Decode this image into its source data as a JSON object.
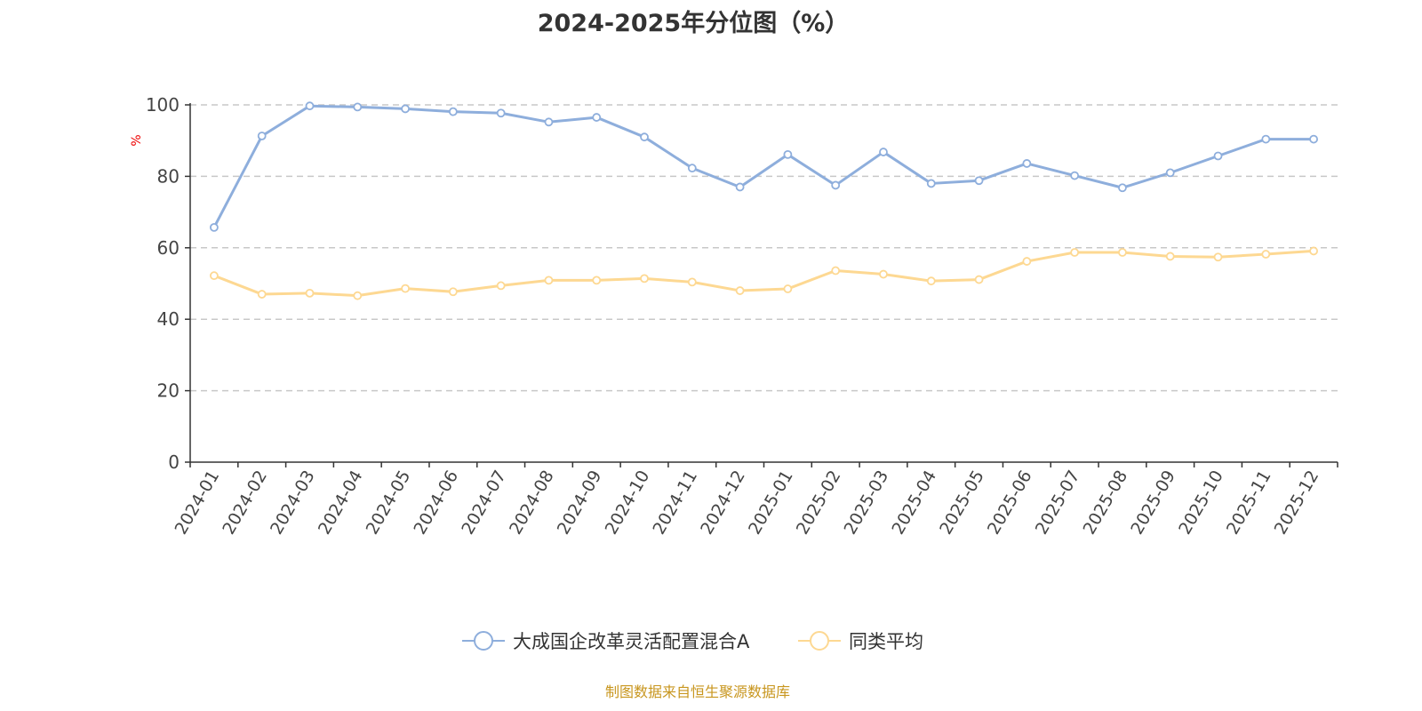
{
  "chart_data": {
    "type": "line",
    "title": "2024-2025年分位图（%）",
    "xlabel": "",
    "ylabel": "%",
    "ylim": [
      0,
      100
    ],
    "yticks": [
      0,
      20,
      40,
      60,
      80,
      100
    ],
    "grid": true,
    "legend_position": "bottom",
    "categories": [
      "2024-01",
      "2024-02",
      "2024-03",
      "2024-04",
      "2024-05",
      "2024-06",
      "2024-07",
      "2024-08",
      "2024-09",
      "2024-10",
      "2024-11",
      "2024-12",
      "2025-01",
      "2025-02",
      "2025-03",
      "2025-04",
      "2025-05",
      "2025-06",
      "2025-07",
      "2025-08",
      "2025-09",
      "2025-10",
      "2025-11",
      "2025-12"
    ],
    "series": [
      {
        "name": "大成国企改革灵活配置混合A",
        "color": "#8eaedc",
        "values": [
          65.7,
          91.3,
          99.7,
          99.4,
          98.9,
          98.1,
          97.7,
          95.2,
          96.5,
          91.0,
          82.3,
          77.0,
          86.1,
          77.5,
          86.8,
          78.0,
          78.8,
          83.6,
          80.2,
          76.8,
          81.0,
          85.7,
          90.4,
          90.4
        ]
      },
      {
        "name": "同类平均",
        "color": "#fdd892",
        "values": [
          52.2,
          47.0,
          47.3,
          46.6,
          48.6,
          47.7,
          49.4,
          50.9,
          50.9,
          51.4,
          50.4,
          48.0,
          48.5,
          53.6,
          52.6,
          50.7,
          51.1,
          56.2,
          58.7,
          58.7,
          57.6,
          57.4,
          58.2,
          59.1
        ]
      }
    ]
  },
  "footer": {
    "source": "制图数据来自恒生聚源数据库"
  }
}
